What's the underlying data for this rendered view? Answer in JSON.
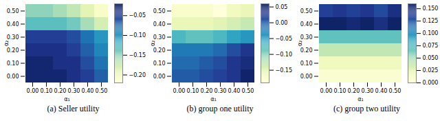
{
  "chart_data": [
    {
      "type": "heatmap",
      "title": "(a) Seller utility",
      "color": "YlGnBu",
      "x_label": "α₁",
      "y_label": "α₂",
      "x": [
        0,
        0.1,
        0.2,
        0.3,
        0.4,
        0.5
      ],
      "y": [
        0,
        0.1,
        0.2,
        0.3,
        0.4,
        0.5
      ],
      "xticks": [
        {
          "value": 0,
          "label": "0.00"
        },
        {
          "value": 0.1,
          "label": "0.10"
        },
        {
          "value": 0.2,
          "label": "0.20"
        },
        {
          "value": 0.3,
          "label": "0.30"
        },
        {
          "value": 0.4,
          "label": "0.40"
        },
        {
          "value": 0.5,
          "label": "0.50"
        }
      ],
      "yticks": [
        {
          "value": 0,
          "label": "0.00"
        },
        {
          "value": 0.1,
          "label": "0.10"
        },
        {
          "value": 0.2,
          "label": "0.20"
        },
        {
          "value": 0.3,
          "label": "0.30"
        },
        {
          "value": 0.4,
          "label": "0.40"
        },
        {
          "value": 0.5,
          "label": "0.50"
        }
      ],
      "values": [
        [
          -0.03,
          -0.03,
          -0.03,
          -0.04,
          -0.05,
          -0.07
        ],
        [
          -0.03,
          -0.03,
          -0.04,
          -0.04,
          -0.06,
          -0.08
        ],
        [
          -0.04,
          -0.04,
          -0.04,
          -0.05,
          -0.07,
          -0.09
        ],
        [
          -0.05,
          -0.05,
          -0.05,
          -0.06,
          -0.08,
          -0.1
        ],
        [
          -0.13,
          -0.13,
          -0.13,
          -0.14,
          -0.16,
          -0.18
        ],
        [
          -0.15,
          -0.15,
          -0.16,
          -0.17,
          -0.19,
          -0.21
        ]
      ],
      "colorbar_range": [
        -0.22,
        -0.02
      ],
      "colorbar_ticks": [
        {
          "value": -0.05,
          "label": "−0.05"
        },
        {
          "value": -0.1,
          "label": "−0.10"
        },
        {
          "value": -0.15,
          "label": "−0.15"
        },
        {
          "value": -0.2,
          "label": "−0.20"
        }
      ]
    },
    {
      "type": "heatmap",
      "title": "(b) group one utility",
      "color": "YlGnBu",
      "x_label": "α₁",
      "y_label": "α₂",
      "x": [
        0,
        0.1,
        0.2,
        0.3,
        0.4,
        0.5
      ],
      "y": [
        0,
        0.1,
        0.2,
        0.3,
        0.4,
        0.5
      ],
      "xticks": [
        {
          "value": 0,
          "label": "0.00"
        },
        {
          "value": 0.1,
          "label": "0.10"
        },
        {
          "value": 0.2,
          "label": "0.20"
        },
        {
          "value": 0.3,
          "label": "0.30"
        },
        {
          "value": 0.4,
          "label": "0.40"
        },
        {
          "value": 0.5,
          "label": "0.50"
        }
      ],
      "yticks": [
        {
          "value": 0,
          "label": "0.00"
        },
        {
          "value": 0.1,
          "label": "0.10"
        },
        {
          "value": 0.2,
          "label": "0.20"
        },
        {
          "value": 0.3,
          "label": "0.30"
        },
        {
          "value": 0.4,
          "label": "0.40"
        },
        {
          "value": 0.5,
          "label": "0.50"
        }
      ],
      "values": [
        [
          0.0,
          0.0,
          0.01,
          0.02,
          0.03,
          0.05
        ],
        [
          -0.01,
          -0.01,
          0.0,
          0.01,
          0.03,
          0.04
        ],
        [
          -0.02,
          -0.02,
          -0.02,
          -0.01,
          0.01,
          0.03
        ],
        [
          -0.07,
          -0.08,
          -0.08,
          -0.07,
          -0.05,
          -0.04
        ],
        [
          -0.16,
          -0.16,
          -0.16,
          -0.15,
          -0.14,
          -0.13
        ],
        [
          -0.18,
          -0.18,
          -0.18,
          -0.19,
          -0.17,
          -0.16
        ]
      ],
      "colorbar_range": [
        -0.19,
        0.06
      ],
      "colorbar_ticks": [
        {
          "value": 0.05,
          "label": "0.05"
        },
        {
          "value": 0,
          "label": "0.00"
        },
        {
          "value": -0.05,
          "label": "−0.05"
        },
        {
          "value": -0.1,
          "label": "−0.10"
        },
        {
          "value": -0.15,
          "label": "−0.15"
        }
      ]
    },
    {
      "type": "heatmap",
      "title": "(c) group two utility",
      "color": "YlGnBu",
      "x_label": "α₁",
      "y_label": "α₂",
      "x": [
        0,
        0.1,
        0.2,
        0.3,
        0.4,
        0.5
      ],
      "y": [
        0,
        0.1,
        0.2,
        0.3,
        0.4,
        0.5
      ],
      "xticks": [
        {
          "value": 0,
          "label": "0.00"
        },
        {
          "value": 0.1,
          "label": "0.10"
        },
        {
          "value": 0.2,
          "label": "0.20"
        },
        {
          "value": 0.3,
          "label": "0.30"
        },
        {
          "value": 0.4,
          "label": "0.40"
        },
        {
          "value": 0.5,
          "label": "0.50"
        }
      ],
      "yticks": [
        {
          "value": 0,
          "label": "0.00"
        },
        {
          "value": 0.1,
          "label": "0.10"
        },
        {
          "value": 0.2,
          "label": "0.20"
        },
        {
          "value": 0.3,
          "label": "0.30"
        },
        {
          "value": 0.4,
          "label": "0.40"
        },
        {
          "value": 0.5,
          "label": "0.50"
        }
      ],
      "values": [
        [
          0.005,
          0.005,
          0.005,
          0.005,
          0.005,
          0.005
        ],
        [
          0.015,
          0.015,
          0.015,
          0.015,
          0.015,
          0.015
        ],
        [
          0.04,
          0.04,
          0.04,
          0.04,
          0.04,
          0.04
        ],
        [
          0.07,
          0.07,
          0.07,
          0.07,
          0.07,
          0.07
        ],
        [
          0.155,
          0.155,
          0.15,
          0.155,
          0.145,
          0.155
        ],
        [
          0.135,
          0.14,
          0.135,
          0.14,
          0.13,
          0.145
        ]
      ],
      "colorbar_range": [
        0,
        0.16
      ],
      "colorbar_ticks": [
        {
          "value": 0,
          "label": "0.000"
        },
        {
          "value": 0.025,
          "label": "0.025"
        },
        {
          "value": 0.05,
          "label": "0.050"
        },
        {
          "value": 0.075,
          "label": "0.075"
        },
        {
          "value": 0.1,
          "label": "0.100"
        },
        {
          "value": 0.125,
          "label": "0.125"
        },
        {
          "value": 0.15,
          "label": "0.150"
        }
      ]
    }
  ]
}
